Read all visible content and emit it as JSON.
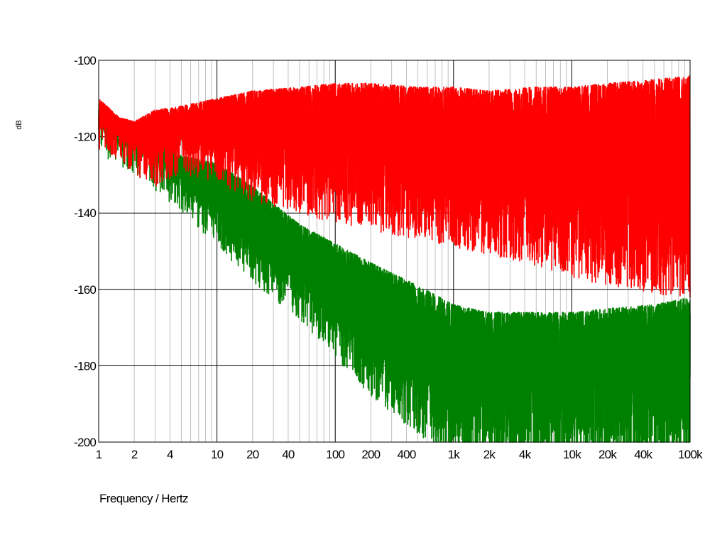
{
  "chart_data": {
    "type": "line",
    "title": "",
    "xlabel": "Frequency / Hertz",
    "ylabel": "dB",
    "x_scale": "log",
    "xlim": [
      1,
      100000
    ],
    "ylim": [
      -200,
      -100
    ],
    "grid": true,
    "legend": "none",
    "x_ticks": [
      {
        "value": 1,
        "label": "1"
      },
      {
        "value": 2,
        "label": "2"
      },
      {
        "value": 4,
        "label": "4"
      },
      {
        "value": 10,
        "label": "10"
      },
      {
        "value": 20,
        "label": "20"
      },
      {
        "value": 40,
        "label": "40"
      },
      {
        "value": 100,
        "label": "100"
      },
      {
        "value": 200,
        "label": "200"
      },
      {
        "value": 400,
        "label": "400"
      },
      {
        "value": 1000,
        "label": "1k"
      },
      {
        "value": 2000,
        "label": "2k"
      },
      {
        "value": 4000,
        "label": "4k"
      },
      {
        "value": 10000,
        "label": "10k"
      },
      {
        "value": 20000,
        "label": "20k"
      },
      {
        "value": 40000,
        "label": "40k"
      },
      {
        "value": 100000,
        "label": "100k"
      }
    ],
    "y_ticks": [
      {
        "value": -100,
        "label": "-100"
      },
      {
        "value": -120,
        "label": "-120"
      },
      {
        "value": -140,
        "label": "-140"
      },
      {
        "value": -160,
        "label": "-160"
      },
      {
        "value": -180,
        "label": "-180"
      },
      {
        "value": -200,
        "label": "-200"
      }
    ],
    "series": [
      {
        "color": "#ff0000",
        "x": [
          1,
          1.5,
          2,
          3,
          5,
          10,
          20,
          50,
          100,
          200,
          500,
          1000,
          2000,
          5000,
          10000,
          20000,
          50000,
          100000
        ],
        "upper": [
          -110,
          -115,
          -116,
          -113,
          -112,
          -110,
          -108,
          -107,
          -106,
          -106,
          -107,
          -107,
          -108,
          -107,
          -107,
          -106,
          -105,
          -104
        ],
        "lower": [
          -118,
          -120,
          -124,
          -127,
          -124,
          -126,
          -131,
          -134,
          -137,
          -139,
          -141,
          -143,
          -145,
          -148,
          -151,
          -153,
          -155,
          -157
        ]
      },
      {
        "color": "#008000",
        "x": [
          1,
          1.5,
          2,
          3,
          5,
          10,
          20,
          50,
          100,
          200,
          500,
          1000,
          2000,
          5000,
          10000,
          20000,
          50000,
          100000
        ],
        "upper": [
          -112,
          -121,
          -118,
          -120,
          -125,
          -127,
          -133,
          -143,
          -148,
          -153,
          -159,
          -164,
          -166,
          -166,
          -166,
          -165,
          -164,
          -162
        ],
        "lower": [
          -118,
          -122,
          -124,
          -128,
          -134,
          -143,
          -152,
          -162,
          -172,
          -182,
          -192,
          -200,
          -200,
          -200,
          -200,
          -200,
          -200,
          -200
        ]
      }
    ]
  }
}
